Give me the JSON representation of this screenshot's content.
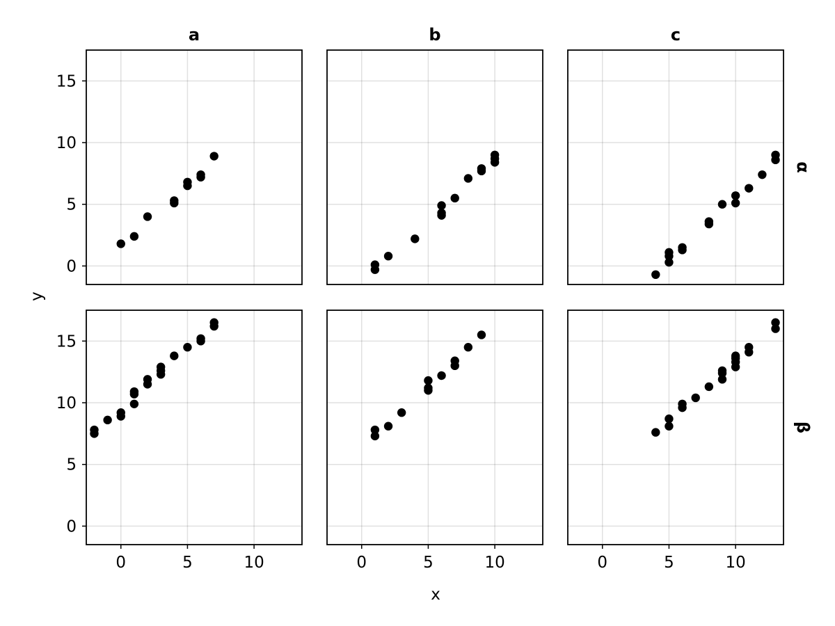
{
  "chart_data": {
    "type": "scatter",
    "xlabel": "x",
    "ylabel": "y",
    "col_titles": [
      "a",
      "b",
      "c"
    ],
    "row_titles": [
      "α",
      "β"
    ],
    "xlim": [
      -2.6,
      13.6
    ],
    "ylim": [
      -1.5,
      17.5
    ],
    "xticks": [
      0,
      5,
      10
    ],
    "yticks": [
      0,
      5,
      10,
      15
    ],
    "grid": true,
    "panels": [
      {
        "row": 0,
        "col": 0,
        "points": [
          [
            0,
            1.8
          ],
          [
            1,
            2.4
          ],
          [
            2,
            4.0
          ],
          [
            4,
            5.1
          ],
          [
            4,
            5.3
          ],
          [
            5,
            6.5
          ],
          [
            5,
            6.8
          ],
          [
            6,
            7.2
          ],
          [
            6,
            7.4
          ],
          [
            7,
            8.9
          ]
        ]
      },
      {
        "row": 0,
        "col": 1,
        "points": [
          [
            1,
            -0.3
          ],
          [
            1,
            0.1
          ],
          [
            2,
            0.8
          ],
          [
            4,
            2.2
          ],
          [
            6,
            4.1
          ],
          [
            6,
            4.3
          ],
          [
            6,
            4.9
          ],
          [
            7,
            5.5
          ],
          [
            8,
            7.1
          ],
          [
            9,
            7.7
          ],
          [
            9,
            7.9
          ],
          [
            10,
            8.4
          ],
          [
            10,
            8.7
          ],
          [
            10,
            9.0
          ]
        ]
      },
      {
        "row": 0,
        "col": 2,
        "points": [
          [
            4,
            -0.7
          ],
          [
            5,
            0.3
          ],
          [
            5,
            0.8
          ],
          [
            5,
            1.1
          ],
          [
            6,
            1.3
          ],
          [
            6,
            1.5
          ],
          [
            8,
            3.4
          ],
          [
            8,
            3.6
          ],
          [
            9,
            5.0
          ],
          [
            10,
            5.1
          ],
          [
            10,
            5.7
          ],
          [
            11,
            6.3
          ],
          [
            12,
            7.4
          ],
          [
            13,
            8.6
          ],
          [
            13,
            9.0
          ]
        ]
      },
      {
        "row": 1,
        "col": 0,
        "points": [
          [
            -2,
            7.5
          ],
          [
            -2,
            7.8
          ],
          [
            -1,
            8.6
          ],
          [
            0,
            8.9
          ],
          [
            0,
            9.2
          ],
          [
            1,
            9.9
          ],
          [
            1,
            10.7
          ],
          [
            1,
            10.9
          ],
          [
            2,
            11.5
          ],
          [
            2,
            11.9
          ],
          [
            3,
            12.3
          ],
          [
            3,
            12.6
          ],
          [
            3,
            12.9
          ],
          [
            4,
            13.8
          ],
          [
            5,
            14.5
          ],
          [
            6,
            15.0
          ],
          [
            6,
            15.2
          ],
          [
            7,
            16.2
          ],
          [
            7,
            16.5
          ]
        ]
      },
      {
        "row": 1,
        "col": 1,
        "points": [
          [
            1,
            7.3
          ],
          [
            1,
            7.8
          ],
          [
            2,
            8.1
          ],
          [
            3,
            9.2
          ],
          [
            5,
            11.0
          ],
          [
            5,
            11.2
          ],
          [
            5,
            11.8
          ],
          [
            6,
            12.2
          ],
          [
            7,
            13.0
          ],
          [
            7,
            13.4
          ],
          [
            8,
            14.5
          ],
          [
            9,
            15.5
          ]
        ]
      },
      {
        "row": 1,
        "col": 2,
        "points": [
          [
            4,
            7.6
          ],
          [
            5,
            8.1
          ],
          [
            5,
            8.7
          ],
          [
            6,
            9.6
          ],
          [
            6,
            9.9
          ],
          [
            7,
            10.4
          ],
          [
            8,
            11.3
          ],
          [
            9,
            11.9
          ],
          [
            9,
            12.4
          ],
          [
            9,
            12.6
          ],
          [
            10,
            12.9
          ],
          [
            10,
            13.3
          ],
          [
            10,
            13.6
          ],
          [
            10,
            13.8
          ],
          [
            11,
            14.1
          ],
          [
            11,
            14.5
          ],
          [
            13,
            16.0
          ],
          [
            13,
            16.5
          ]
        ]
      }
    ]
  }
}
